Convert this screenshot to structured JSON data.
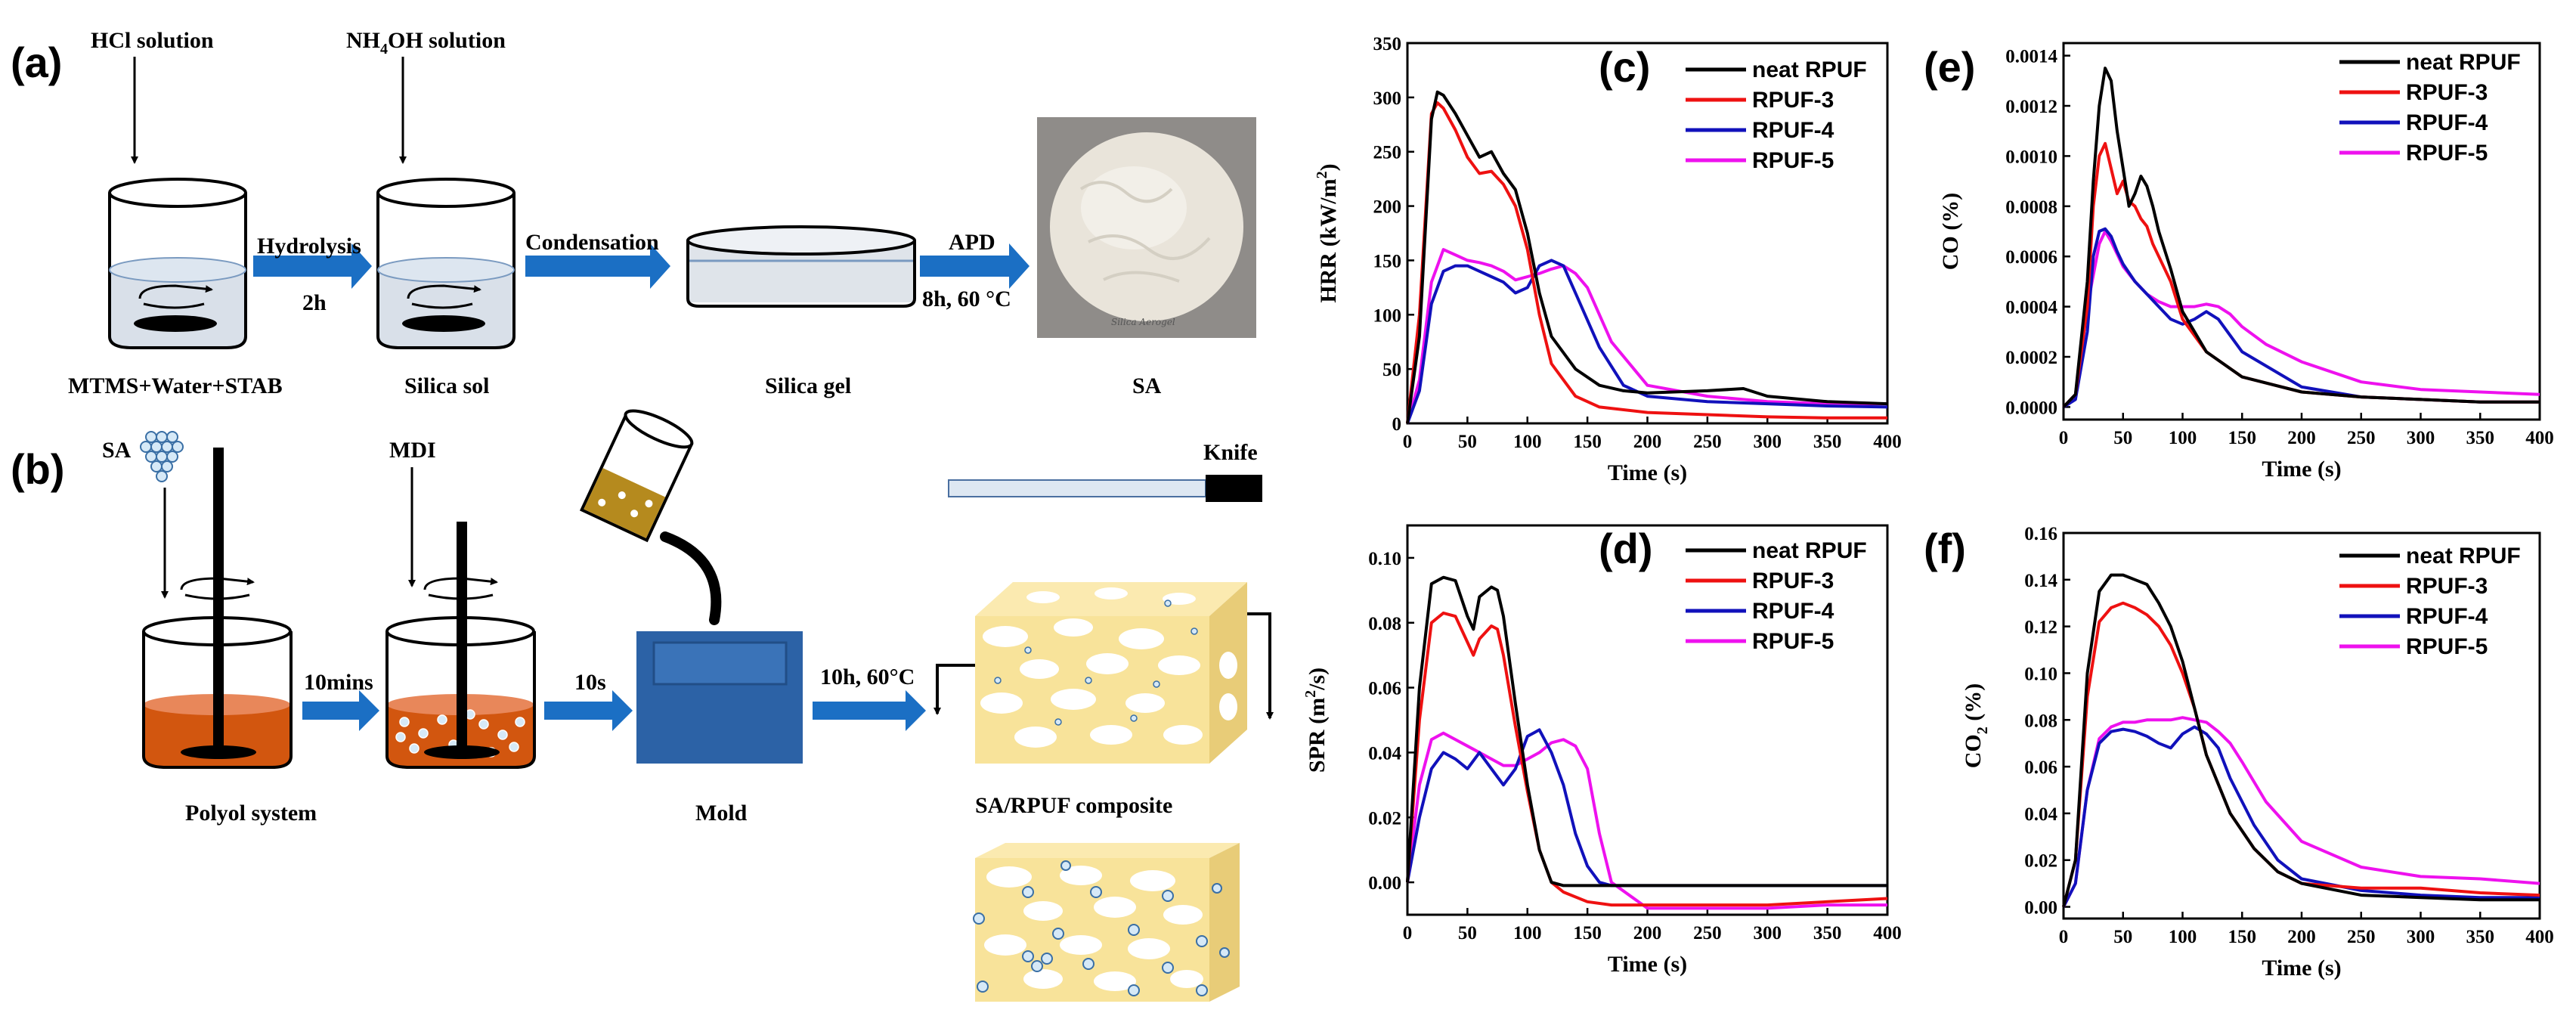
{
  "scheme": {
    "panel_a": "(a)",
    "panel_b": "(b)",
    "hcl": "HCl solution",
    "nh4oh_pre": "NH",
    "nh4oh_sub": "4",
    "nh4oh_post": "OH solution",
    "hydrolysis": "Hydrolysis",
    "hydrolysis_time": "2h",
    "condensation": "Condensation",
    "apd": "APD",
    "apd_cond": "8h, 60 °C",
    "mtms": "MTMS+Water+STAB",
    "silica_sol": "Silica sol",
    "silica_gel": "Silica gel",
    "sa_caption": "SA",
    "photo_text": "Silica Aerogel",
    "sa_label": "SA",
    "mdi": "MDI",
    "knife": "Knife",
    "step1": "10mins",
    "step2": "10s",
    "step3": "10h, 60°C",
    "polyol": "Polyol system",
    "mold": "Mold",
    "composite": "SA/RPUF composite"
  },
  "colors": {
    "neat": "#000000",
    "rpuf3": "#ee1111",
    "rpuf4": "#1111bb",
    "rpuf5": "#ee11ee",
    "arrow": "#1b6fc4",
    "polyol": "#d2560f",
    "mold": "#2c62a6",
    "foam": "#f8e39a"
  },
  "chart_data": [
    {
      "id": "c",
      "panel_label": "(c)",
      "type": "line",
      "xlabel": "Time (s)",
      "ylabel_pre": "HRR (kW/m",
      "ylabel_sup": "2",
      "ylabel_post": ")",
      "xlim": [
        0,
        400
      ],
      "ylim": [
        0,
        350
      ],
      "xticks": [
        "0",
        "50",
        "100",
        "150",
        "200",
        "250",
        "300",
        "350",
        "400"
      ],
      "yticks": [
        "0",
        "50",
        "100",
        "150",
        "200",
        "250",
        "300",
        "350"
      ],
      "series": [
        {
          "name": "neat RPUF",
          "x": [
            0,
            10,
            20,
            25,
            30,
            40,
            50,
            60,
            70,
            80,
            90,
            100,
            110,
            120,
            140,
            160,
            180,
            200,
            250,
            280,
            300,
            350,
            400
          ],
          "y": [
            0,
            80,
            280,
            305,
            302,
            285,
            265,
            245,
            250,
            230,
            215,
            175,
            120,
            80,
            50,
            35,
            30,
            28,
            30,
            32,
            25,
            20,
            18
          ]
        },
        {
          "name": "RPUF-3",
          "x": [
            0,
            10,
            20,
            25,
            30,
            40,
            50,
            60,
            70,
            80,
            90,
            100,
            110,
            120,
            140,
            160,
            200,
            250,
            300,
            350,
            400
          ],
          "y": [
            0,
            100,
            285,
            295,
            290,
            270,
            245,
            230,
            232,
            220,
            200,
            160,
            100,
            55,
            25,
            15,
            10,
            8,
            6,
            5,
            5
          ]
        },
        {
          "name": "RPUF-4",
          "x": [
            0,
            10,
            20,
            30,
            40,
            50,
            60,
            70,
            80,
            90,
            100,
            110,
            120,
            130,
            140,
            160,
            180,
            200,
            250,
            300,
            350,
            400
          ],
          "y": [
            0,
            30,
            110,
            140,
            145,
            145,
            140,
            135,
            130,
            120,
            125,
            145,
            150,
            145,
            120,
            70,
            35,
            25,
            20,
            18,
            16,
            15
          ]
        },
        {
          "name": "RPUF-5",
          "x": [
            0,
            10,
            20,
            30,
            40,
            50,
            60,
            70,
            80,
            90,
            100,
            110,
            120,
            130,
            140,
            150,
            170,
            200,
            250,
            300,
            350,
            400
          ],
          "y": [
            0,
            40,
            130,
            160,
            155,
            150,
            148,
            145,
            140,
            132,
            135,
            138,
            142,
            145,
            138,
            125,
            75,
            35,
            25,
            20,
            18,
            18
          ]
        }
      ],
      "legend": [
        "neat RPUF",
        "RPUF-3",
        "RPUF-4",
        "RPUF-5"
      ]
    },
    {
      "id": "d",
      "panel_label": "(d)",
      "type": "line",
      "xlabel": "Time (s)",
      "ylabel_pre": "SPR (m",
      "ylabel_sup": "2",
      "ylabel_post": "/s)",
      "xlim": [
        0,
        400
      ],
      "ylim": [
        -0.01,
        0.11
      ],
      "xticks": [
        "0",
        "50",
        "100",
        "150",
        "200",
        "250",
        "300",
        "350",
        "400"
      ],
      "yticks": [
        "0.00",
        "0.02",
        "0.04",
        "0.06",
        "0.08",
        "0.10"
      ],
      "series": [
        {
          "name": "neat RPUF",
          "x": [
            0,
            10,
            20,
            30,
            40,
            50,
            55,
            60,
            70,
            75,
            80,
            90,
            100,
            110,
            120,
            130,
            140,
            160,
            200,
            250,
            300,
            350,
            400
          ],
          "y": [
            0,
            0.06,
            0.092,
            0.094,
            0.093,
            0.082,
            0.078,
            0.088,
            0.091,
            0.09,
            0.082,
            0.055,
            0.03,
            0.01,
            0,
            -0.001,
            -0.001,
            -0.001,
            -0.001,
            -0.001,
            -0.001,
            -0.001,
            -0.001
          ]
        },
        {
          "name": "RPUF-3",
          "x": [
            0,
            10,
            20,
            30,
            40,
            50,
            55,
            60,
            70,
            75,
            80,
            90,
            100,
            110,
            120,
            130,
            150,
            170,
            200,
            250,
            300,
            350,
            400
          ],
          "y": [
            0,
            0.05,
            0.08,
            0.083,
            0.082,
            0.074,
            0.07,
            0.075,
            0.079,
            0.078,
            0.07,
            0.048,
            0.028,
            0.01,
            0,
            -0.003,
            -0.006,
            -0.007,
            -0.007,
            -0.007,
            -0.007,
            -0.006,
            -0.005
          ]
        },
        {
          "name": "RPUF-4",
          "x": [
            0,
            10,
            20,
            30,
            40,
            50,
            60,
            70,
            80,
            90,
            100,
            110,
            120,
            130,
            140,
            150,
            160,
            170,
            200,
            250,
            300,
            350,
            400
          ],
          "y": [
            0,
            0.02,
            0.035,
            0.04,
            0.038,
            0.035,
            0.04,
            0.035,
            0.03,
            0.035,
            0.045,
            0.047,
            0.04,
            0.03,
            0.015,
            0.005,
            0,
            -0.001,
            -0.001,
            -0.001,
            -0.001,
            -0.001,
            -0.001
          ]
        },
        {
          "name": "RPUF-5",
          "x": [
            0,
            10,
            20,
            30,
            40,
            50,
            60,
            70,
            80,
            90,
            100,
            110,
            120,
            130,
            140,
            150,
            160,
            170,
            200,
            250,
            300,
            350,
            400
          ],
          "y": [
            0,
            0.03,
            0.044,
            0.046,
            0.044,
            0.042,
            0.04,
            0.038,
            0.036,
            0.036,
            0.038,
            0.04,
            0.043,
            0.044,
            0.042,
            0.035,
            0.015,
            0,
            -0.008,
            -0.008,
            -0.008,
            -0.007,
            -0.007
          ]
        }
      ],
      "legend": [
        "neat RPUF",
        "RPUF-3",
        "RPUF-4",
        "RPUF-5"
      ]
    },
    {
      "id": "e",
      "panel_label": "(e)",
      "type": "line",
      "xlabel": "Time (s)",
      "ylabel_pre": "CO (%)",
      "ylabel_sup": "",
      "ylabel_post": "",
      "xlim": [
        0,
        400
      ],
      "ylim": [
        -5e-05,
        0.00145
      ],
      "xticks": [
        "0",
        "50",
        "100",
        "150",
        "200",
        "250",
        "300",
        "350",
        "400"
      ],
      "yticks": [
        "0.0000",
        "0.0002",
        "0.0004",
        "0.0006",
        "0.0008",
        "0.0010",
        "0.0012",
        "0.0014"
      ],
      "series": [
        {
          "name": "neat RPUF",
          "x": [
            0,
            10,
            20,
            25,
            30,
            35,
            40,
            45,
            50,
            55,
            60,
            65,
            70,
            75,
            80,
            90,
            100,
            120,
            150,
            200,
            250,
            300,
            350,
            400
          ],
          "y": [
            0,
            5e-05,
            0.0005,
            0.0009,
            0.0012,
            0.00135,
            0.0013,
            0.0011,
            0.00095,
            0.0008,
            0.00085,
            0.00092,
            0.00088,
            0.0008,
            0.0007,
            0.00055,
            0.00038,
            0.00022,
            0.00012,
            6e-05,
            4e-05,
            3e-05,
            2e-05,
            2e-05
          ]
        },
        {
          "name": "RPUF-3",
          "x": [
            0,
            10,
            20,
            25,
            30,
            35,
            40,
            45,
            50,
            55,
            60,
            65,
            70,
            75,
            80,
            90,
            100,
            120,
            150,
            200,
            250,
            300,
            350,
            400
          ],
          "y": [
            0,
            5e-05,
            0.0004,
            0.0008,
            0.001,
            0.00105,
            0.00095,
            0.00085,
            0.0009,
            0.00082,
            0.0008,
            0.00075,
            0.00072,
            0.00065,
            0.0006,
            0.0005,
            0.00035,
            0.00022,
            0.00012,
            6e-05,
            4e-05,
            3e-05,
            2e-05,
            2e-05
          ]
        },
        {
          "name": "RPUF-4",
          "x": [
            0,
            10,
            20,
            25,
            30,
            35,
            40,
            45,
            50,
            60,
            70,
            80,
            90,
            100,
            110,
            120,
            130,
            150,
            200,
            250,
            300,
            350,
            400
          ],
          "y": [
            0,
            3e-05,
            0.0003,
            0.0006,
            0.0007,
            0.00071,
            0.00068,
            0.00062,
            0.00057,
            0.0005,
            0.00045,
            0.0004,
            0.00035,
            0.00033,
            0.00035,
            0.00038,
            0.00035,
            0.00022,
            8e-05,
            4e-05,
            3e-05,
            2e-05,
            2e-05
          ]
        },
        {
          "name": "RPUF-5",
          "x": [
            0,
            10,
            20,
            30,
            35,
            40,
            50,
            60,
            70,
            80,
            90,
            100,
            110,
            120,
            130,
            140,
            150,
            170,
            200,
            250,
            300,
            350,
            400
          ],
          "y": [
            0,
            4e-05,
            0.0004,
            0.00065,
            0.0007,
            0.00066,
            0.00056,
            0.0005,
            0.00045,
            0.00042,
            0.0004,
            0.0004,
            0.0004,
            0.00041,
            0.0004,
            0.00037,
            0.00032,
            0.00025,
            0.00018,
            0.0001,
            7e-05,
            6e-05,
            5e-05
          ]
        }
      ],
      "legend": [
        "neat RPUF",
        "RPUF-3",
        "RPUF-4",
        "RPUF-5"
      ]
    },
    {
      "id": "f",
      "panel_label": "(f)",
      "type": "line",
      "xlabel": "Time (s)",
      "ylabel_pre": "CO",
      "ylabel_sub": "2",
      "ylabel_post": " (%)",
      "xlim": [
        0,
        400
      ],
      "ylim": [
        -0.005,
        0.16
      ],
      "xticks": [
        "0",
        "50",
        "100",
        "150",
        "200",
        "250",
        "300",
        "350",
        "400"
      ],
      "yticks": [
        "0.00",
        "0.02",
        "0.04",
        "0.06",
        "0.08",
        "0.10",
        "0.12",
        "0.14",
        "0.16"
      ],
      "series": [
        {
          "name": "neat RPUF",
          "x": [
            0,
            10,
            20,
            30,
            40,
            50,
            60,
            70,
            80,
            90,
            100,
            110,
            120,
            140,
            160,
            180,
            200,
            250,
            300,
            350,
            400
          ],
          "y": [
            0,
            0.02,
            0.1,
            0.135,
            0.142,
            0.142,
            0.14,
            0.138,
            0.13,
            0.12,
            0.105,
            0.085,
            0.065,
            0.04,
            0.025,
            0.015,
            0.01,
            0.005,
            0.004,
            0.003,
            0.003
          ]
        },
        {
          "name": "RPUF-3",
          "x": [
            0,
            10,
            20,
            30,
            40,
            50,
            60,
            70,
            80,
            90,
            100,
            110,
            120,
            140,
            160,
            180,
            200,
            250,
            300,
            350,
            400
          ],
          "y": [
            0,
            0.02,
            0.09,
            0.122,
            0.128,
            0.13,
            0.128,
            0.125,
            0.12,
            0.112,
            0.1,
            0.085,
            0.065,
            0.04,
            0.025,
            0.015,
            0.01,
            0.008,
            0.008,
            0.006,
            0.005
          ]
        },
        {
          "name": "RPUF-4",
          "x": [
            0,
            10,
            20,
            30,
            40,
            50,
            60,
            70,
            80,
            90,
            100,
            110,
            120,
            130,
            140,
            160,
            180,
            200,
            250,
            300,
            350,
            400
          ],
          "y": [
            0,
            0.01,
            0.05,
            0.07,
            0.075,
            0.076,
            0.075,
            0.073,
            0.07,
            0.068,
            0.074,
            0.077,
            0.074,
            0.068,
            0.055,
            0.035,
            0.02,
            0.012,
            0.007,
            0.005,
            0.004,
            0.004
          ]
        },
        {
          "name": "RPUF-5",
          "x": [
            0,
            10,
            20,
            30,
            40,
            50,
            60,
            70,
            80,
            90,
            100,
            110,
            120,
            130,
            140,
            150,
            170,
            200,
            250,
            300,
            350,
            400
          ],
          "y": [
            0,
            0.01,
            0.05,
            0.072,
            0.077,
            0.079,
            0.079,
            0.08,
            0.08,
            0.08,
            0.081,
            0.08,
            0.079,
            0.075,
            0.07,
            0.062,
            0.045,
            0.028,
            0.017,
            0.013,
            0.012,
            0.01
          ]
        }
      ],
      "legend": [
        "neat RPUF",
        "RPUF-3",
        "RPUF-4",
        "RPUF-5"
      ]
    }
  ]
}
